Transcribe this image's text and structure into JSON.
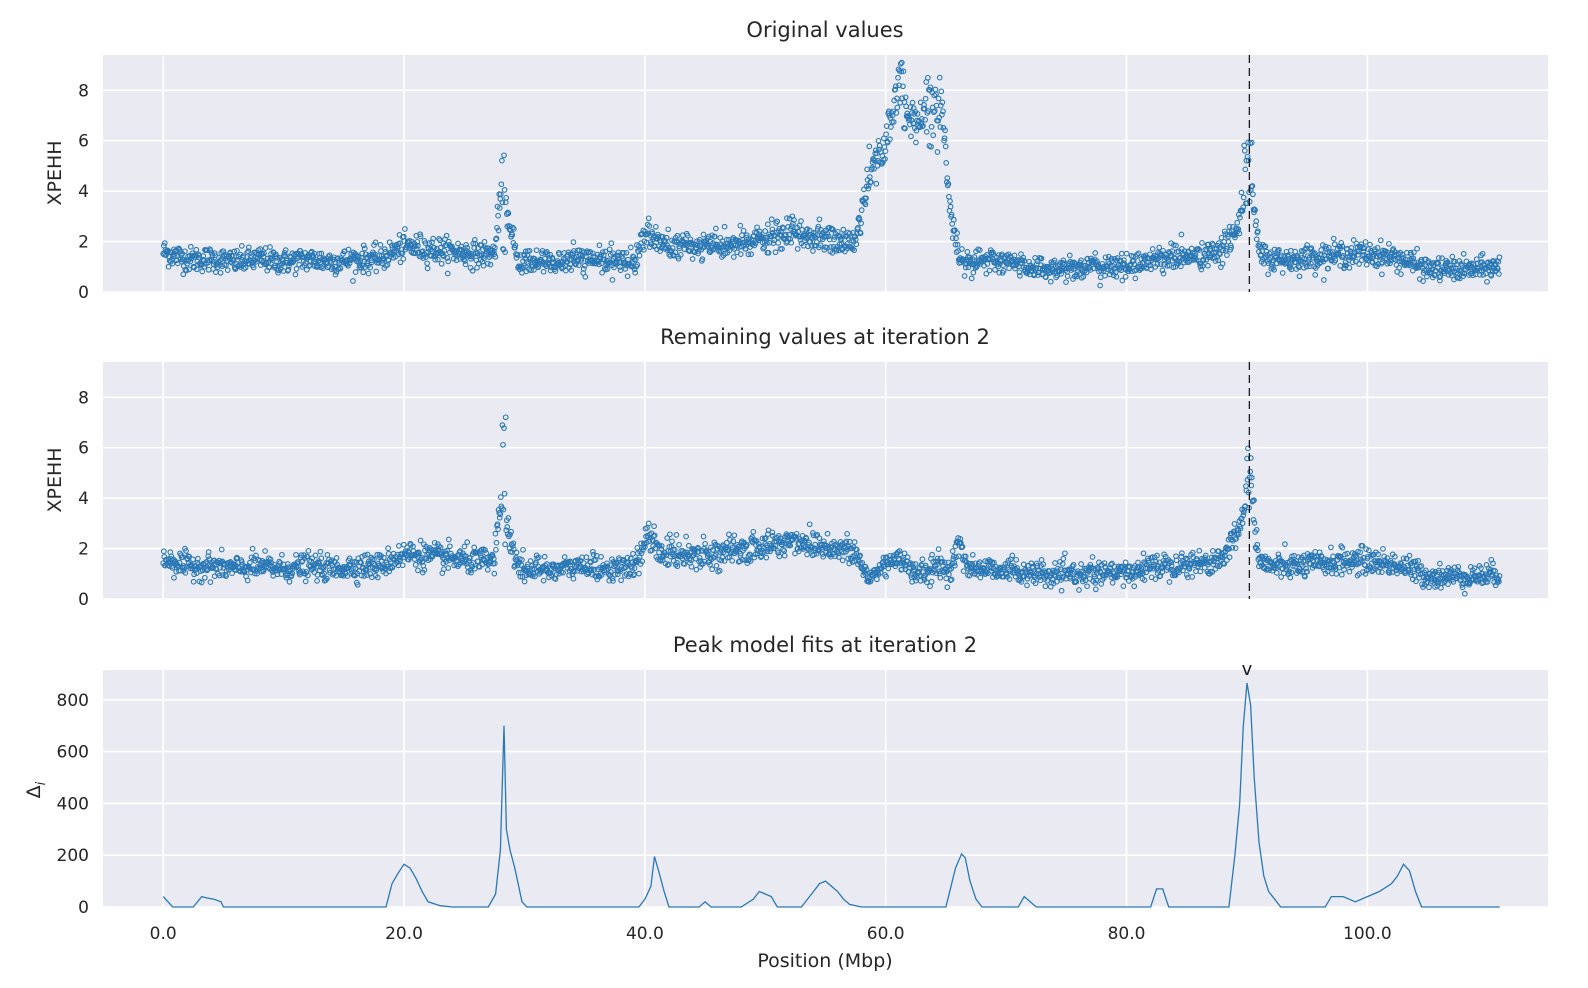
{
  "chart_data": [
    {
      "type": "scatter",
      "title": "Original values",
      "ylabel": "XPEHH",
      "xlim": [
        -5,
        115
      ],
      "ylim": [
        0,
        9.4
      ],
      "yticks": [
        0,
        2,
        4,
        6,
        8
      ],
      "ytick_labels": [
        "0",
        "2",
        "4",
        "6",
        "8"
      ],
      "grid": true,
      "marker": "open-circle",
      "color": "#2a78b5",
      "vline_x": 90.2,
      "series": [
        {
          "x": [
            0.0,
            2,
            4,
            6,
            8,
            10,
            12,
            14,
            16,
            18,
            19.5,
            20.5,
            22,
            24,
            26,
            27.5,
            28.3,
            28.5,
            29.5,
            31,
            33,
            35,
            37,
            39,
            40.3,
            41,
            42,
            44,
            46,
            48,
            50,
            52,
            54,
            56,
            57.5,
            58.5,
            59.5,
            60.5,
            61,
            62,
            63,
            64,
            64.7,
            65.3,
            66,
            67,
            68,
            70,
            72,
            74,
            76,
            78,
            80,
            82,
            84,
            86,
            88,
            89.5,
            90.2,
            91,
            92,
            94,
            96,
            98,
            100,
            102,
            103.5,
            105,
            107,
            109,
            111
          ],
          "y": [
            1.6,
            1.3,
            1.3,
            1.2,
            1.3,
            1.2,
            1.3,
            1.2,
            1.3,
            1.3,
            1.7,
            1.8,
            1.7,
            1.6,
            1.5,
            1.5,
            5.0,
            3.0,
            1.2,
            1.2,
            1.2,
            1.3,
            1.2,
            1.2,
            2.5,
            2.0,
            1.8,
            1.8,
            1.8,
            1.9,
            2.1,
            2.3,
            2.2,
            2.0,
            2.0,
            4.5,
            5.5,
            6.5,
            8.5,
            6.8,
            7.0,
            7.5,
            7.3,
            3.5,
            1.5,
            1.2,
            1.2,
            1.2,
            1.0,
            0.9,
            1.0,
            1.0,
            1.0,
            1.3,
            1.4,
            1.4,
            1.6,
            3.0,
            5.0,
            1.5,
            1.3,
            1.3,
            1.4,
            1.5,
            1.5,
            1.4,
            1.2,
            0.9,
            0.9,
            0.9,
            1.0
          ]
        }
      ]
    },
    {
      "type": "scatter",
      "title": "Remaining values at iteration 2",
      "ylabel": "XPEHH",
      "xlim": [
        -5,
        115
      ],
      "ylim": [
        0,
        9.4
      ],
      "yticks": [
        0,
        2,
        4,
        6,
        8
      ],
      "ytick_labels": [
        "0",
        "2",
        "4",
        "6",
        "8"
      ],
      "grid": true,
      "marker": "open-circle",
      "color": "#2a78b5",
      "vline_x": 90.2,
      "series": [
        {
          "x": [
            0.0,
            2,
            4,
            6,
            8,
            10,
            12,
            14,
            16,
            18,
            19.5,
            20.5,
            22,
            24,
            26,
            27.5,
            28.3,
            28.5,
            29.5,
            31,
            33,
            35,
            37,
            39,
            40.3,
            41,
            42,
            44,
            46,
            48,
            50,
            52,
            54,
            56,
            57.5,
            58.5,
            59.5,
            60.5,
            61,
            62,
            63,
            64,
            64.7,
            65.3,
            66,
            67,
            68,
            70,
            72,
            74,
            76,
            78,
            80,
            82,
            84,
            86,
            88,
            89.5,
            90.2,
            91,
            92,
            94,
            96,
            98,
            100,
            102,
            103.5,
            105,
            107,
            109,
            111
          ],
          "y": [
            1.6,
            1.3,
            1.3,
            1.2,
            1.3,
            1.2,
            1.3,
            1.2,
            1.3,
            1.3,
            1.7,
            1.8,
            1.7,
            1.6,
            1.5,
            1.5,
            5.0,
            3.0,
            1.2,
            1.2,
            1.2,
            1.3,
            1.2,
            1.2,
            2.5,
            2.0,
            1.8,
            1.8,
            1.8,
            1.9,
            2.1,
            2.3,
            2.2,
            2.0,
            1.8,
            0.8,
            1.2,
            1.5,
            1.8,
            1.1,
            1.0,
            1.2,
            1.3,
            1.0,
            2.2,
            1.2,
            1.2,
            1.2,
            1.0,
            0.9,
            1.0,
            1.0,
            1.0,
            1.3,
            1.4,
            1.4,
            1.6,
            3.0,
            5.0,
            1.5,
            1.3,
            1.3,
            1.4,
            1.5,
            1.5,
            1.4,
            1.2,
            0.9,
            0.9,
            0.9,
            1.0
          ]
        }
      ]
    },
    {
      "type": "line",
      "title": "Peak model fits at iteration 2",
      "ylabel": "Δi",
      "xlabel": "Position (Mbp)",
      "xlim": [
        -5,
        115
      ],
      "ylim": [
        0,
        915
      ],
      "xticks": [
        0,
        20,
        40,
        60,
        80,
        100
      ],
      "xtick_labels": [
        "0.0",
        "20.0",
        "40.0",
        "60.0",
        "80.0",
        "100.0"
      ],
      "yticks": [
        0,
        200,
        400,
        600,
        800
      ],
      "ytick_labels": [
        "0",
        "200",
        "400",
        "600",
        "800"
      ],
      "grid": true,
      "color": "#2a78b5",
      "marker_label": "v",
      "marker_x": 90.0,
      "series": [
        {
          "x": [
            0,
            0.4,
            0.8,
            1.5,
            2.5,
            3.2,
            3.6,
            4.2,
            4.8,
            5.0,
            18.5,
            19.0,
            19.5,
            20.0,
            20.5,
            21.0,
            21.5,
            22.0,
            23,
            24,
            26,
            27.0,
            27.6,
            28.0,
            28.3,
            28.5,
            28.8,
            29.2,
            29.8,
            30.2,
            39.5,
            40.0,
            40.5,
            40.8,
            41.2,
            41.6,
            42.0,
            44.5,
            45.0,
            45.5,
            48.0,
            49.0,
            49.5,
            50.0,
            50.5,
            51.0,
            53.0,
            54.0,
            54.5,
            55.0,
            55.5,
            56.0,
            56.5,
            57.0,
            58.0,
            65.0,
            65.8,
            66.3,
            66.6,
            67.0,
            67.5,
            68.0,
            71.0,
            71.5,
            72.0,
            72.5,
            82.0,
            82.5,
            83.0,
            83.5,
            88.5,
            89.0,
            89.4,
            89.7,
            90.0,
            90.3,
            90.6,
            91.0,
            91.4,
            91.8,
            92.3,
            92.8,
            96.5,
            97.0,
            98.0,
            99.0,
            100.0,
            101.0,
            102.0,
            102.5,
            103.0,
            103.5,
            104.0,
            104.5,
            111.0
          ],
          "y": [
            40,
            20,
            0,
            0,
            0,
            40,
            35,
            30,
            20,
            0,
            0,
            90,
            130,
            165,
            150,
            110,
            60,
            20,
            5,
            0,
            0,
            0,
            50,
            220,
            700,
            300,
            220,
            150,
            20,
            0,
            0,
            30,
            80,
            195,
            130,
            60,
            0,
            0,
            20,
            0,
            0,
            30,
            60,
            50,
            40,
            0,
            0,
            60,
            90,
            100,
            80,
            60,
            30,
            10,
            0,
            0,
            150,
            205,
            190,
            100,
            30,
            0,
            0,
            40,
            20,
            0,
            0,
            70,
            70,
            0,
            0,
            200,
            400,
            700,
            865,
            780,
            500,
            250,
            120,
            60,
            30,
            0,
            0,
            40,
            40,
            20,
            40,
            60,
            90,
            120,
            165,
            140,
            60,
            0,
            0
          ]
        }
      ]
    }
  ]
}
